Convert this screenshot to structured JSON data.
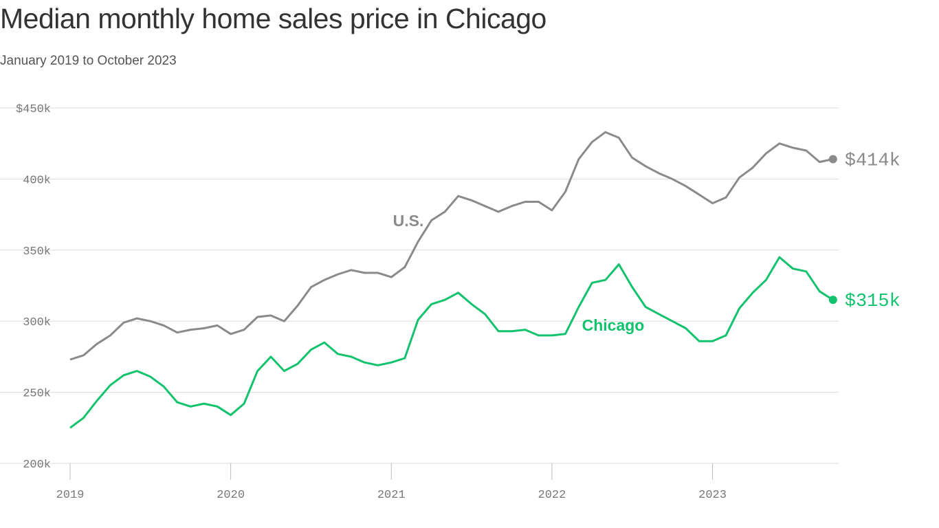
{
  "title": "Median monthly home sales price in Chicago",
  "subtitle": "January 2019 to October 2023",
  "chart_data": {
    "type": "line",
    "title": "Median monthly home sales price in Chicago",
    "subtitle": "January 2019 to October 2023",
    "x_start": "2019-01",
    "x_end": "2023-10",
    "x_frequency": "monthly",
    "x_ticks": [
      "2019",
      "2020",
      "2021",
      "2022",
      "2023"
    ],
    "y_ticks": [
      "$450k",
      "400k",
      "350k",
      "300k",
      "250k",
      "200k"
    ],
    "y_tick_values": [
      450,
      400,
      350,
      300,
      250,
      200
    ],
    "ylim": [
      200,
      450
    ],
    "y_unit": "thousand USD",
    "grid": "horizontal",
    "series": [
      {
        "name": "U.S.",
        "color": "#8a8a8a",
        "end_label": "$414k",
        "values": [
          273,
          276,
          284,
          290,
          299,
          302,
          300,
          297,
          292,
          294,
          295,
          297,
          291,
          294,
          303,
          304,
          300,
          311,
          324,
          329,
          333,
          336,
          334,
          334,
          331,
          338,
          356,
          371,
          377,
          388,
          385,
          381,
          377,
          381,
          384,
          384,
          378,
          391,
          414,
          426,
          433,
          429,
          415,
          409,
          404,
          400,
          395,
          389,
          383,
          387,
          401,
          408,
          418,
          425,
          422,
          420,
          412,
          414
        ]
      },
      {
        "name": "Chicago",
        "color": "#12c26c",
        "end_label": "$315k",
        "values": [
          225,
          232,
          244,
          255,
          262,
          265,
          261,
          254,
          243,
          240,
          242,
          240,
          234,
          242,
          265,
          275,
          265,
          270,
          280,
          285,
          277,
          275,
          271,
          269,
          271,
          274,
          301,
          312,
          315,
          320,
          312,
          305,
          293,
          293,
          294,
          290,
          290,
          291,
          310,
          327,
          329,
          340,
          324,
          310,
          305,
          300,
          295,
          286,
          286,
          290,
          309,
          320,
          329,
          345,
          337,
          335,
          321,
          315
        ]
      }
    ]
  }
}
